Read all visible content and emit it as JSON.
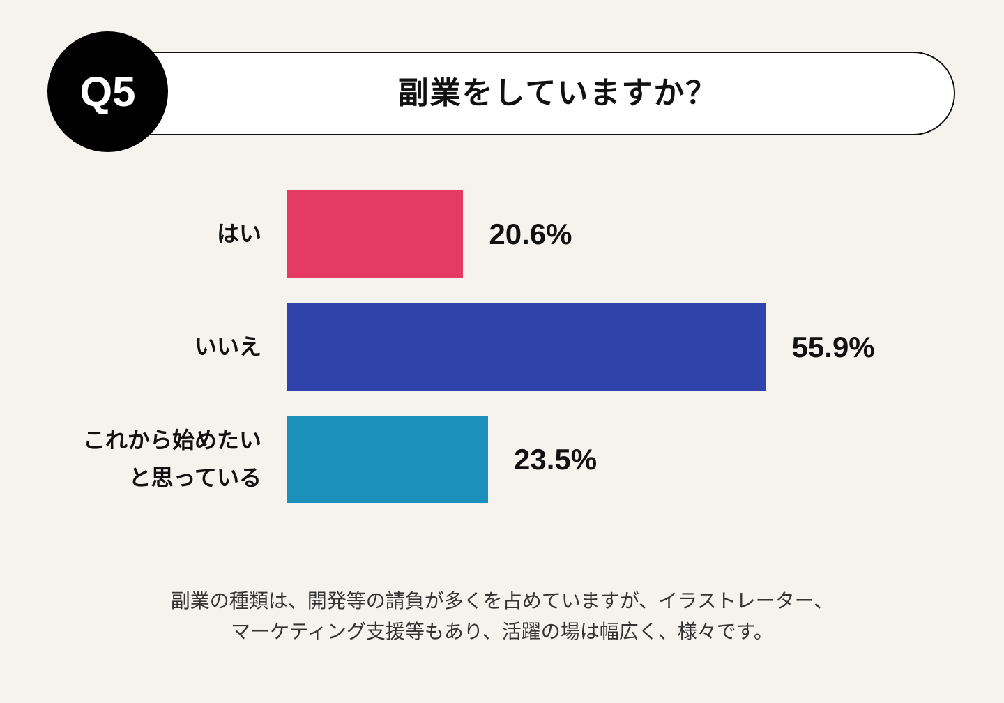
{
  "header": {
    "badge": "Q5",
    "title": "副業をしていますか？"
  },
  "chart_data": {
    "type": "bar",
    "orientation": "horizontal",
    "title": "副業をしていますか？",
    "categories": [
      "はい",
      "いいえ",
      "これから始めたいと思っている"
    ],
    "category_lines": [
      [
        "はい"
      ],
      [
        "いいえ"
      ],
      [
        "これから始めたい",
        "と思っている"
      ]
    ],
    "values": [
      20.6,
      55.9,
      23.5
    ],
    "value_labels": [
      "20.6%",
      "55.9%",
      "23.5%"
    ],
    "unit": "%",
    "colors": [
      "#e53a63",
      "#2f43ab",
      "#1a90bb"
    ],
    "grid": false,
    "legend": "none"
  },
  "footnote": {
    "line1": "副業の種類は、開発等の請負が多くを占めていますが、イラストレーター、",
    "line2": "マーケティング支援等もあり、活躍の場は幅広く、様々です。"
  }
}
